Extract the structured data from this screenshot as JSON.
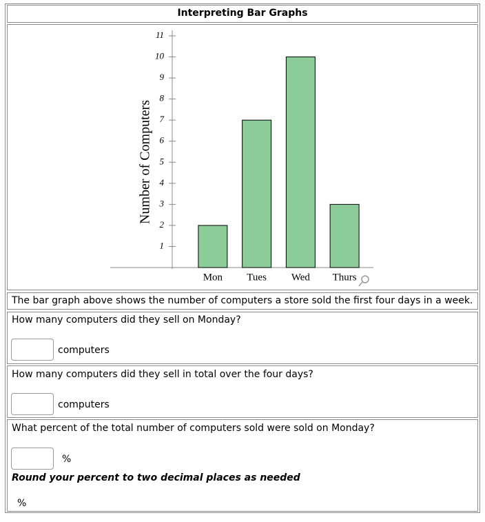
{
  "header": {
    "title": "Interpreting Bar Graphs"
  },
  "chart_data": {
    "type": "bar",
    "y_label": "Number of Computers",
    "categories": [
      "Mon",
      "Tues",
      "Wed",
      "Thurs"
    ],
    "values": [
      2,
      7,
      10,
      3
    ],
    "color": "#8ccc9a",
    "ylim": [
      0,
      11
    ],
    "yticks": [
      1,
      2,
      3,
      4,
      5,
      6,
      7,
      8,
      9,
      10,
      11
    ]
  },
  "description": "The bar graph above shows the number of computers a store sold the first four days in a week.",
  "questions": [
    {
      "text": "How many computers did they sell on Monday?",
      "unit": "computers"
    },
    {
      "text": "How many computers did they sell in total over the four days?",
      "unit": "computers"
    },
    {
      "text": "What percent of the total number of computers sold were sold on Monday?",
      "unit": "%",
      "hint": "Round your percent to two decimal places as needed",
      "footer": "%"
    }
  ]
}
